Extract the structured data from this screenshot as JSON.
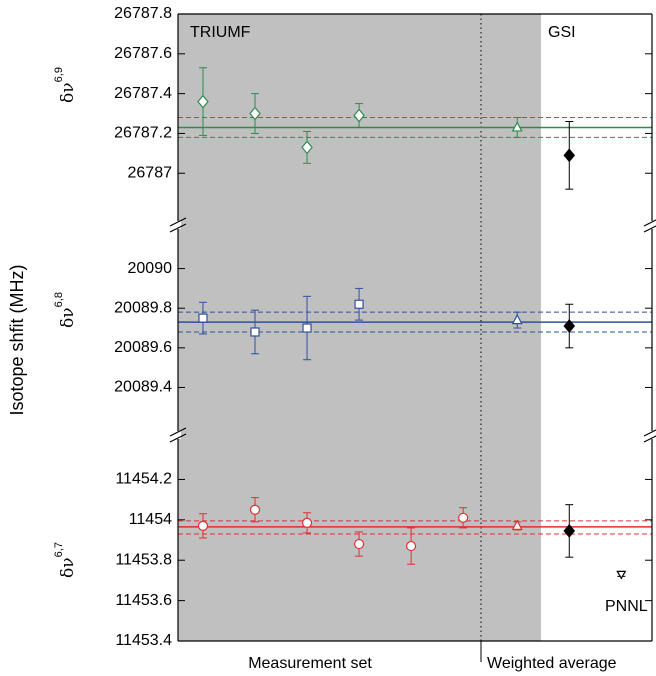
{
  "ylabel": "Isotope shfit (MHz)",
  "xlabels": [
    "Measurement set",
    "Weighted average"
  ],
  "xlim": [
    0.52,
    9.63
  ],
  "chart_data": [
    {
      "type": "scatter",
      "symbol": "δν",
      "superscript": "6,9",
      "ylim": [
        26786.74,
        26787.8
      ],
      "yticks": [
        26787.0,
        26787.2,
        26787.4,
        26787.6,
        26787.8
      ],
      "annotations": [
        "TRIUMF",
        "GSI"
      ],
      "mean": 26787.23,
      "band": [
        26787.18,
        26787.28
      ],
      "color": "#2e8b4e",
      "series": [
        {
          "marker": "diamond",
          "filled": false,
          "color": "#2e8b4e",
          "x": [
            1,
            2,
            3,
            4
          ],
          "values": [
            26787.36,
            26787.3,
            26787.13,
            26787.29
          ],
          "errors": [
            0.17,
            0.1,
            0.08,
            0.06
          ]
        },
        {
          "marker": "triangle",
          "filled": false,
          "color": "#2e8b4e",
          "x": [
            7.04
          ],
          "values": [
            26787.23
          ],
          "errors": [
            0.05
          ]
        },
        {
          "marker": "diamond",
          "filled": true,
          "color": "#000000",
          "x": [
            8.04
          ],
          "values": [
            26787.09
          ],
          "errors": [
            0.17
          ]
        }
      ]
    },
    {
      "type": "scatter",
      "symbol": "δν",
      "superscript": "6,8",
      "ylim": [
        20089.16,
        20090.22
      ],
      "yticks": [
        20089.4,
        20089.6,
        20089.8,
        20090.0
      ],
      "mean": 20089.73,
      "band": [
        20089.68,
        20089.78
      ],
      "color": "#2f4fa0",
      "series": [
        {
          "marker": "square",
          "filled": false,
          "color": "#2f4fa0",
          "x": [
            1,
            2,
            3,
            4
          ],
          "values": [
            20089.75,
            20089.68,
            20089.7,
            20089.82
          ],
          "errors": [
            0.08,
            0.11,
            0.16,
            0.08
          ]
        },
        {
          "marker": "triangle",
          "filled": false,
          "color": "#2f4fa0",
          "x": [
            7.04
          ],
          "values": [
            20089.74
          ],
          "errors": [
            0.04
          ]
        },
        {
          "marker": "diamond",
          "filled": true,
          "color": "#000000",
          "x": [
            8.04
          ],
          "values": [
            20089.71
          ],
          "errors": [
            0.11
          ]
        }
      ]
    },
    {
      "type": "scatter",
      "symbol": "δν",
      "superscript": "6,7",
      "ylim": [
        11453.4,
        11454.42
      ],
      "yticks": [
        11453.4,
        11453.6,
        11453.8,
        11454.0,
        11454.2
      ],
      "annotations": [
        "PNNL"
      ],
      "mean": 11453.965,
      "band": [
        11453.93,
        11453.995
      ],
      "color": "#e03030",
      "series": [
        {
          "marker": "circle",
          "filled": false,
          "color": "#e03030",
          "x": [
            1,
            2,
            3,
            4,
            5,
            6
          ],
          "values": [
            11453.97,
            11454.05,
            11453.985,
            11453.88,
            11453.87,
            11454.01
          ],
          "errors": [
            0.06,
            0.06,
            0.05,
            0.06,
            0.09,
            0.05
          ]
        },
        {
          "marker": "triangle",
          "filled": false,
          "color": "#e03030",
          "x": [
            7.04
          ],
          "values": [
            11453.97
          ],
          "errors": [
            0.02
          ]
        },
        {
          "marker": "diamond",
          "filled": true,
          "color": "#000000",
          "x": [
            8.04
          ],
          "values": [
            11453.945
          ],
          "errors": [
            0.13
          ]
        },
        {
          "marker": "down-triangle",
          "filled": false,
          "color": "#000000",
          "x": [
            9.04
          ],
          "values": [
            11453.73
          ],
          "errors": [
            0.01
          ]
        }
      ]
    }
  ]
}
